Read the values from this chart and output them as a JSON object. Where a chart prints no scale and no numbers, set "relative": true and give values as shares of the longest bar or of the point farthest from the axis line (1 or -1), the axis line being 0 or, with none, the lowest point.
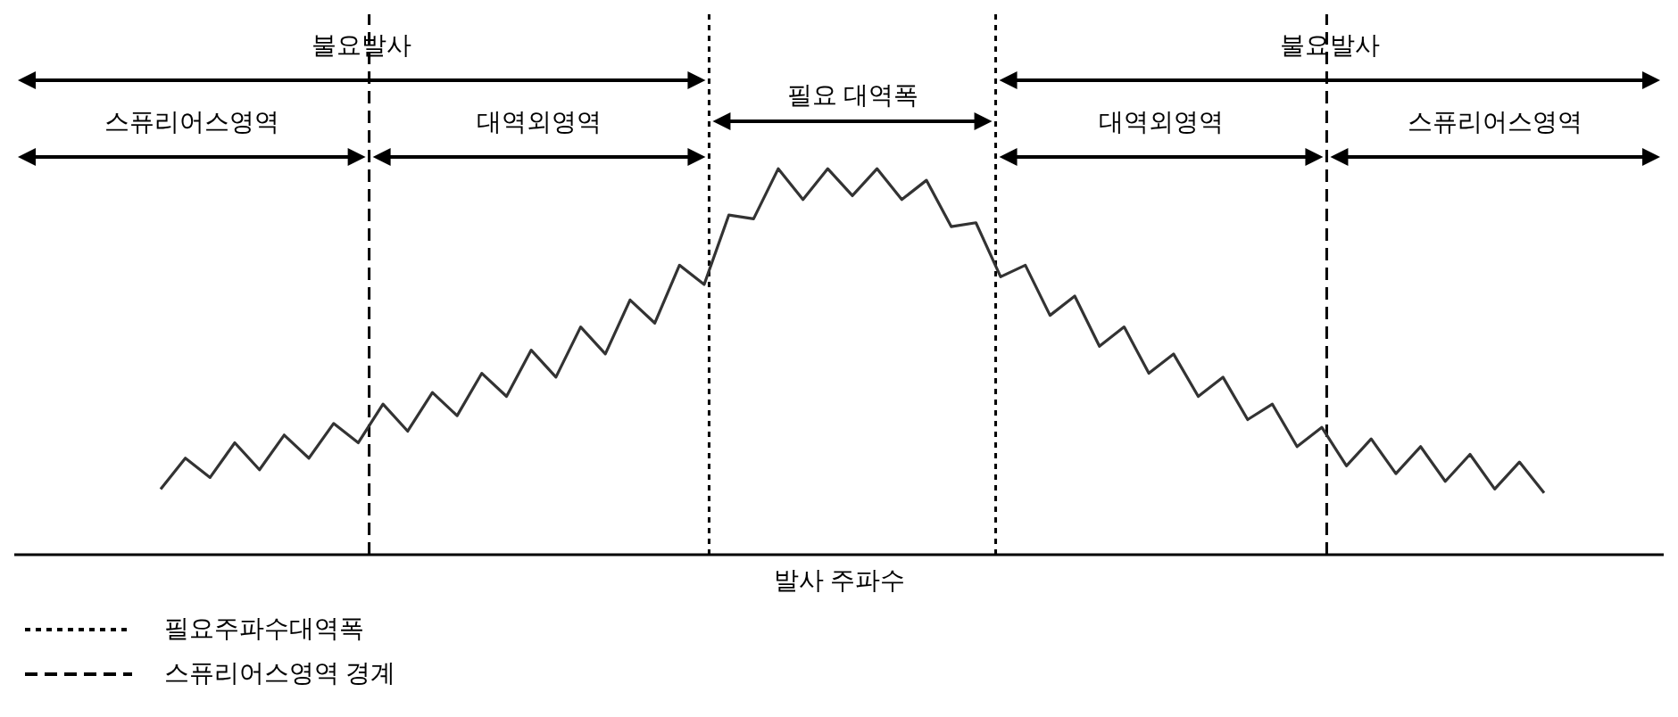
{
  "chart_data": {
    "type": "line",
    "relative": true,
    "xlabel": "발사 주파수",
    "line_style": "solid",
    "grid": "x",
    "marker": "none",
    "annotations": [
      "불요발사",
      "불요발사",
      "필요 대역폭",
      "스퓨리어스영역",
      "대역외영역",
      "대역외영역",
      "스퓨리어스영역",
      "필요주파수대역폭",
      "스퓨리어스영역 경계"
    ],
    "categories": [
      null,
      null,
      null,
      null,
      null,
      null,
      null,
      null,
      null,
      null,
      null,
      null,
      null,
      null,
      null,
      null,
      null,
      null,
      null,
      null,
      null,
      null,
      null,
      null,
      null,
      null,
      null,
      null,
      null,
      null,
      null,
      null,
      null,
      null,
      null,
      null,
      null,
      null,
      null,
      null,
      null,
      null,
      null,
      null,
      null,
      null,
      null,
      null,
      null,
      null,
      null,
      null,
      null,
      null,
      null,
      null,
      null
    ],
    "series": [
      {
        "color": "#333333",
        "values": [
          0.17,
          0.25,
          0.2,
          0.29,
          0.22,
          0.31,
          0.25,
          0.34,
          0.29,
          0.39,
          0.32,
          0.42,
          0.36,
          0.47,
          0.41,
          0.53,
          0.46,
          0.59,
          0.52,
          0.66,
          0.6,
          0.75,
          0.7,
          0.88,
          0.87,
          1.0,
          0.92,
          1.0,
          0.93,
          1.0,
          0.92,
          0.97,
          0.85,
          0.86,
          0.72,
          0.75,
          0.62,
          0.67,
          0.54,
          0.59,
          0.47,
          0.52,
          0.41,
          0.46,
          0.35,
          0.39,
          0.28,
          0.33,
          0.23,
          0.3,
          0.21,
          0.28,
          0.19,
          0.26,
          0.17,
          0.24,
          0.16
        ]
      }
    ]
  }
}
